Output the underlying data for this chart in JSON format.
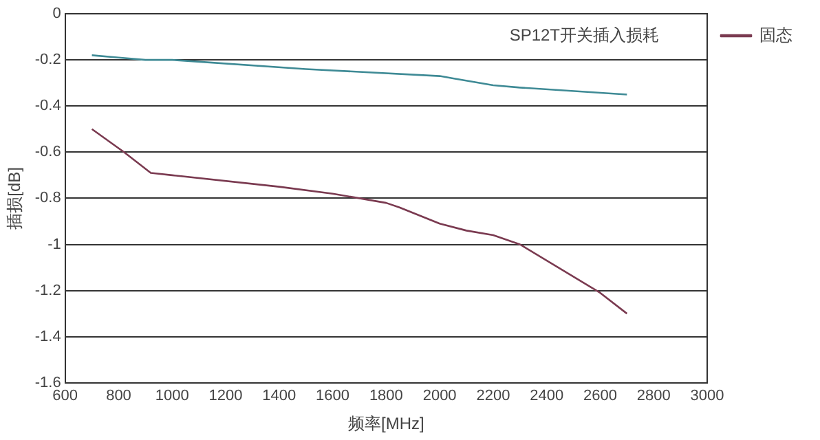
{
  "chart_data": {
    "type": "line",
    "title": "SP12T开关插入损耗",
    "xlabel": "频率[MHz]",
    "ylabel": "插损[dB]",
    "xlim": [
      600,
      3000
    ],
    "xticks": [
      600,
      800,
      1000,
      1200,
      1400,
      1600,
      1800,
      2000,
      2200,
      2400,
      2600,
      2800,
      3000
    ],
    "ylim": [
      -1.6,
      0
    ],
    "yticks": [
      -1.6,
      -1.4,
      -1.2,
      -1,
      -0.8,
      -0.6,
      -0.4,
      -0.2,
      0
    ],
    "grid": "y",
    "legend": "right",
    "marker": "none",
    "line_style": "solid",
    "series": [
      {
        "color": "#3e8a95",
        "x": [
          700,
          800,
          900,
          1000,
          1500,
          2000,
          2050,
          2200,
          2300,
          2700
        ],
        "values": [
          -0.18,
          -0.19,
          -0.2,
          -0.2,
          -0.24,
          -0.27,
          -0.28,
          -0.31,
          -0.32,
          -0.35
        ]
      },
      {
        "name": "固态",
        "color": "#7a3a50",
        "x": [
          700,
          820,
          920,
          1000,
          1400,
          1600,
          1800,
          1850,
          2000,
          2100,
          2200,
          2300,
          2600,
          2700
        ],
        "values": [
          -0.5,
          -0.6,
          -0.69,
          -0.7,
          -0.75,
          -0.78,
          -0.82,
          -0.84,
          -0.91,
          -0.94,
          -0.96,
          -1.0,
          -1.21,
          -1.3
        ]
      }
    ]
  }
}
